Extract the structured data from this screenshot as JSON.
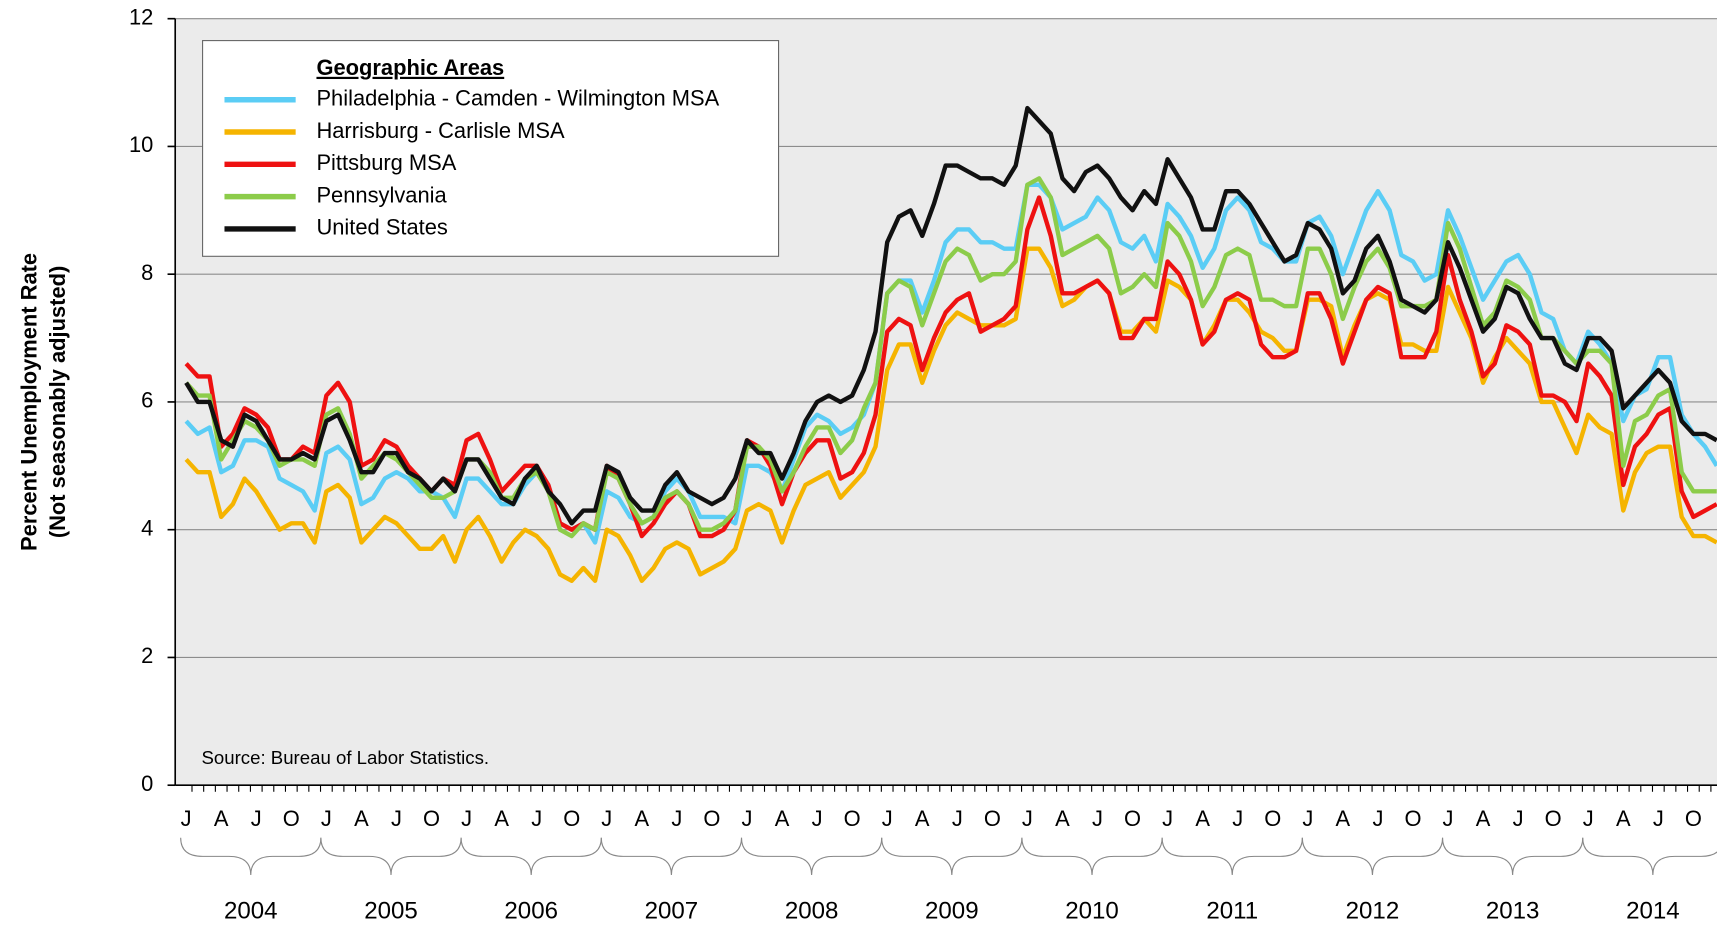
{
  "chart_data": {
    "type": "line",
    "ylabel": [
      "Percent Unemployment Rate",
      "(Not seasonably adjusted)"
    ],
    "legend_title": "Geographic Areas",
    "source": "Source: Bureau of Labor Statistics.",
    "ylim": [
      0,
      12
    ],
    "yticks": [
      0,
      2,
      4,
      6,
      8,
      10,
      12
    ],
    "grid": true,
    "legend": "upper left",
    "categories": [
      "J",
      null,
      null,
      "A",
      null,
      null,
      "J",
      null,
      null,
      "O",
      null,
      null,
      "J",
      null,
      null,
      "A",
      null,
      null,
      "J",
      null,
      null,
      "O",
      null,
      null,
      "J",
      null,
      null,
      "A",
      null,
      null,
      "J",
      null,
      null,
      "O",
      null,
      null,
      "J",
      null,
      null,
      "A",
      null,
      null,
      "J",
      null,
      null,
      "O",
      null,
      null,
      "J",
      null,
      null,
      "A",
      null,
      null,
      "J",
      null,
      null,
      "O",
      null,
      null,
      "J",
      null,
      null,
      "A",
      null,
      null,
      "J",
      null,
      null,
      "O",
      null,
      null,
      "J",
      null,
      null,
      "A",
      null,
      null,
      "J",
      null,
      null,
      "O",
      null,
      null,
      "J",
      null,
      null,
      "A",
      null,
      null,
      "J",
      null,
      null,
      "O",
      null,
      null,
      "J",
      null,
      null,
      "A",
      null,
      null,
      "J",
      null,
      null,
      "O",
      null,
      null,
      "J",
      null,
      null,
      "A",
      null,
      null,
      "J",
      null,
      null,
      "O",
      null,
      null,
      "J",
      null,
      null,
      "A",
      null,
      null,
      "J",
      null,
      null,
      "O",
      null,
      null
    ],
    "year_labels": [
      "2004",
      "2005",
      "2006",
      "2007",
      "2008",
      "2009",
      "2010",
      "2011",
      "2012",
      "2013",
      "2014"
    ],
    "series": [
      {
        "name": "Philadelphia - Camden - Wilmington MSA",
        "color": "#5bcdf5",
        "values": [
          5.7,
          5.5,
          5.6,
          4.9,
          5.0,
          5.4,
          5.4,
          5.3,
          4.8,
          4.7,
          4.6,
          4.3,
          5.2,
          5.3,
          5.1,
          4.4,
          4.5,
          4.8,
          4.9,
          4.8,
          4.6,
          4.6,
          4.5,
          4.2,
          4.8,
          4.8,
          4.6,
          4.4,
          4.4,
          4.7,
          4.9,
          4.7,
          4.1,
          4.0,
          4.1,
          3.8,
          4.6,
          4.5,
          4.2,
          4.1,
          4.2,
          4.6,
          4.8,
          4.6,
          4.2,
          4.2,
          4.2,
          4.1,
          5.0,
          5.0,
          4.9,
          4.6,
          5.1,
          5.6,
          5.8,
          5.7,
          5.5,
          5.6,
          5.8,
          6.3,
          7.7,
          7.9,
          7.9,
          7.4,
          7.9,
          8.5,
          8.7,
          8.7,
          8.5,
          8.5,
          8.4,
          8.4,
          9.4,
          9.4,
          9.2,
          8.7,
          8.8,
          8.9,
          9.2,
          9.0,
          8.5,
          8.4,
          8.6,
          8.2,
          9.1,
          8.9,
          8.6,
          8.1,
          8.4,
          9.0,
          9.2,
          9.0,
          8.5,
          8.4,
          8.2,
          8.2,
          8.8,
          8.9,
          8.6,
          8.0,
          8.5,
          9.0,
          9.3,
          9.0,
          8.3,
          8.2,
          7.9,
          8.0,
          9.0,
          8.6,
          8.1,
          7.6,
          7.9,
          8.2,
          8.3,
          8.0,
          7.4,
          7.3,
          6.8,
          6.6,
          7.1,
          6.9,
          6.6,
          5.7,
          6.1,
          6.2,
          6.7,
          6.7,
          5.8,
          5.5,
          5.3,
          5.0
        ]
      },
      {
        "name": "Harrisburg - Carlisle MSA",
        "color": "#f5b400",
        "values": [
          5.1,
          4.9,
          4.9,
          4.2,
          4.4,
          4.8,
          4.6,
          4.3,
          4.0,
          4.1,
          4.1,
          3.8,
          4.6,
          4.7,
          4.5,
          3.8,
          4.0,
          4.2,
          4.1,
          3.9,
          3.7,
          3.7,
          3.9,
          3.5,
          4.0,
          4.2,
          3.9,
          3.5,
          3.8,
          4.0,
          3.9,
          3.7,
          3.3,
          3.2,
          3.4,
          3.2,
          4.0,
          3.9,
          3.6,
          3.2,
          3.4,
          3.7,
          3.8,
          3.7,
          3.3,
          3.4,
          3.5,
          3.7,
          4.3,
          4.4,
          4.3,
          3.8,
          4.3,
          4.7,
          4.8,
          4.9,
          4.5,
          4.7,
          4.9,
          5.3,
          6.5,
          6.9,
          6.9,
          6.3,
          6.8,
          7.2,
          7.4,
          7.3,
          7.2,
          7.2,
          7.2,
          7.3,
          8.4,
          8.4,
          8.1,
          7.5,
          7.6,
          7.8,
          7.9,
          7.7,
          7.1,
          7.1,
          7.3,
          7.1,
          7.9,
          7.8,
          7.6,
          6.9,
          7.2,
          7.6,
          7.6,
          7.4,
          7.1,
          7.0,
          6.8,
          6.8,
          7.6,
          7.6,
          7.5,
          6.7,
          7.2,
          7.6,
          7.7,
          7.6,
          6.9,
          6.9,
          6.8,
          6.8,
          7.8,
          7.4,
          7.0,
          6.3,
          6.7,
          7.0,
          6.8,
          6.6,
          6.0,
          6.0,
          5.6,
          5.2,
          5.8,
          5.6,
          5.5,
          4.3,
          4.9,
          5.2,
          5.3,
          5.3,
          4.2,
          3.9,
          3.9,
          3.8
        ]
      },
      {
        "name": "Pittsburg MSA",
        "color": "#ee1111",
        "values": [
          6.6,
          6.4,
          6.4,
          5.3,
          5.5,
          5.9,
          5.8,
          5.6,
          5.1,
          5.1,
          5.3,
          5.2,
          6.1,
          6.3,
          6.0,
          5.0,
          5.1,
          5.4,
          5.3,
          5.0,
          4.8,
          4.6,
          4.8,
          4.7,
          5.4,
          5.5,
          5.1,
          4.6,
          4.8,
          5.0,
          5.0,
          4.7,
          4.1,
          4.0,
          4.1,
          4.0,
          5.0,
          4.8,
          4.4,
          3.9,
          4.1,
          4.4,
          4.6,
          4.4,
          3.9,
          3.9,
          4.0,
          4.3,
          5.4,
          5.3,
          5.0,
          4.4,
          4.9,
          5.2,
          5.4,
          5.4,
          4.8,
          4.9,
          5.2,
          5.8,
          7.1,
          7.3,
          7.2,
          6.5,
          7.0,
          7.4,
          7.6,
          7.7,
          7.1,
          7.2,
          7.3,
          7.5,
          8.7,
          9.2,
          8.6,
          7.7,
          7.7,
          7.8,
          7.9,
          7.7,
          7.0,
          7.0,
          7.3,
          7.3,
          8.2,
          8.0,
          7.6,
          6.9,
          7.1,
          7.6,
          7.7,
          7.6,
          6.9,
          6.7,
          6.7,
          6.8,
          7.7,
          7.7,
          7.3,
          6.6,
          7.1,
          7.6,
          7.8,
          7.7,
          6.7,
          6.7,
          6.7,
          7.1,
          8.3,
          7.6,
          7.1,
          6.4,
          6.6,
          7.2,
          7.1,
          6.9,
          6.1,
          6.1,
          6.0,
          5.7,
          6.6,
          6.4,
          6.1,
          4.7,
          5.3,
          5.5,
          5.8,
          5.9,
          4.6,
          4.2,
          4.3,
          4.4
        ]
      },
      {
        "name": "Pennsylvania",
        "color": "#8ccc4a",
        "values": [
          6.3,
          6.1,
          6.1,
          5.1,
          5.4,
          5.7,
          5.6,
          5.4,
          5.0,
          5.1,
          5.1,
          5.0,
          5.8,
          5.9,
          5.5,
          4.8,
          5.0,
          5.2,
          5.1,
          4.9,
          4.7,
          4.5,
          4.5,
          4.6,
          5.1,
          5.1,
          4.9,
          4.5,
          4.5,
          4.8,
          4.9,
          4.6,
          4.0,
          3.9,
          4.1,
          4.0,
          4.9,
          4.8,
          4.4,
          4.1,
          4.2,
          4.5,
          4.6,
          4.4,
          4.0,
          4.0,
          4.1,
          4.3,
          5.3,
          5.3,
          5.1,
          4.6,
          4.9,
          5.3,
          5.6,
          5.6,
          5.2,
          5.4,
          5.9,
          6.3,
          7.7,
          7.9,
          7.8,
          7.2,
          7.7,
          8.2,
          8.4,
          8.3,
          7.9,
          8.0,
          8.0,
          8.2,
          9.4,
          9.5,
          9.2,
          8.3,
          8.4,
          8.5,
          8.6,
          8.4,
          7.7,
          7.8,
          8.0,
          7.8,
          8.8,
          8.6,
          8.2,
          7.5,
          7.8,
          8.3,
          8.4,
          8.3,
          7.6,
          7.6,
          7.5,
          7.5,
          8.4,
          8.4,
          8.0,
          7.3,
          7.8,
          8.2,
          8.4,
          8.1,
          7.5,
          7.5,
          7.5,
          7.6,
          8.8,
          8.4,
          7.8,
          7.2,
          7.4,
          7.9,
          7.8,
          7.6,
          7.0,
          7.0,
          6.8,
          6.6,
          6.8,
          6.8,
          6.6,
          5.0,
          5.7,
          5.8,
          6.1,
          6.2,
          4.9,
          4.6,
          4.6,
          4.6
        ]
      },
      {
        "name": "United States",
        "color": "#111111",
        "values": [
          6.3,
          6.0,
          6.0,
          5.4,
          5.3,
          5.8,
          5.7,
          5.4,
          5.1,
          5.1,
          5.2,
          5.1,
          5.7,
          5.8,
          5.4,
          4.9,
          4.9,
          5.2,
          5.2,
          4.9,
          4.8,
          4.6,
          4.8,
          4.6,
          5.1,
          5.1,
          4.8,
          4.5,
          4.4,
          4.8,
          5.0,
          4.6,
          4.4,
          4.1,
          4.3,
          4.3,
          5.0,
          4.9,
          4.5,
          4.3,
          4.3,
          4.7,
          4.9,
          4.6,
          4.5,
          4.4,
          4.5,
          4.8,
          5.4,
          5.2,
          5.2,
          4.8,
          5.2,
          5.7,
          6.0,
          6.1,
          6.0,
          6.1,
          6.5,
          7.1,
          8.5,
          8.9,
          9.0,
          8.6,
          9.1,
          9.7,
          9.7,
          9.6,
          9.5,
          9.5,
          9.4,
          9.7,
          10.6,
          10.4,
          10.2,
          9.5,
          9.3,
          9.6,
          9.7,
          9.5,
          9.2,
          9.0,
          9.3,
          9.1,
          9.8,
          9.5,
          9.2,
          8.7,
          8.7,
          9.3,
          9.3,
          9.1,
          8.8,
          8.5,
          8.2,
          8.3,
          8.8,
          8.7,
          8.4,
          7.7,
          7.9,
          8.4,
          8.6,
          8.2,
          7.6,
          7.5,
          7.4,
          7.6,
          8.5,
          8.1,
          7.6,
          7.1,
          7.3,
          7.8,
          7.7,
          7.3,
          7.0,
          7.0,
          6.6,
          6.5,
          7.0,
          7.0,
          6.8,
          5.9,
          6.1,
          6.3,
          6.5,
          6.3,
          5.7,
          5.5,
          5.5,
          5.4
        ]
      }
    ]
  }
}
